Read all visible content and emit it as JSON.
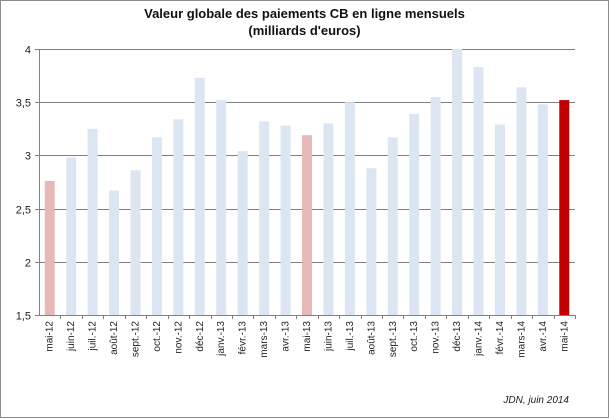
{
  "chart_data": {
    "type": "bar",
    "title": "Valeur globale des paiements CB en ligne mensuels",
    "subtitle": "(milliards d'euros)",
    "categories": [
      "mai-12",
      "juin-12",
      "juil.-12",
      "août-12",
      "sept.-12",
      "oct.-12",
      "nov.-12",
      "déc-12",
      "janv.-13",
      "févr.-13",
      "mars-13",
      "avr.-13",
      "mai-13",
      "juin-13",
      "juil.-13",
      "août-13",
      "sept.-13",
      "oct.-13",
      "nov.-13",
      "déc-13",
      "janv.-14",
      "févr.-14",
      "mars-14",
      "avr.-14",
      "mai-14"
    ],
    "values": [
      2.76,
      2.98,
      3.25,
      2.67,
      2.86,
      3.17,
      3.34,
      3.73,
      3.52,
      3.04,
      3.32,
      3.28,
      3.19,
      3.3,
      3.5,
      2.88,
      3.17,
      3.39,
      3.55,
      4.0,
      3.83,
      3.29,
      3.64,
      3.48,
      3.52
    ],
    "highlight": [
      "mai-12",
      "mai-13",
      "mai-14"
    ],
    "xlabel": "",
    "ylabel": "",
    "ylim": [
      1.5,
      4
    ],
    "yticks": [
      1.5,
      2,
      2.5,
      3,
      3.5,
      4
    ],
    "ytick_labels": [
      "1,5",
      "2",
      "2,5",
      "3",
      "3,5",
      "4"
    ],
    "grid": true,
    "colors": {
      "default": "#dce6f2",
      "highlight_past": "#e6b9b8",
      "highlight_current": "#c00000",
      "grid": "#7f7f7f"
    }
  },
  "source": "JDN, juin 2014"
}
